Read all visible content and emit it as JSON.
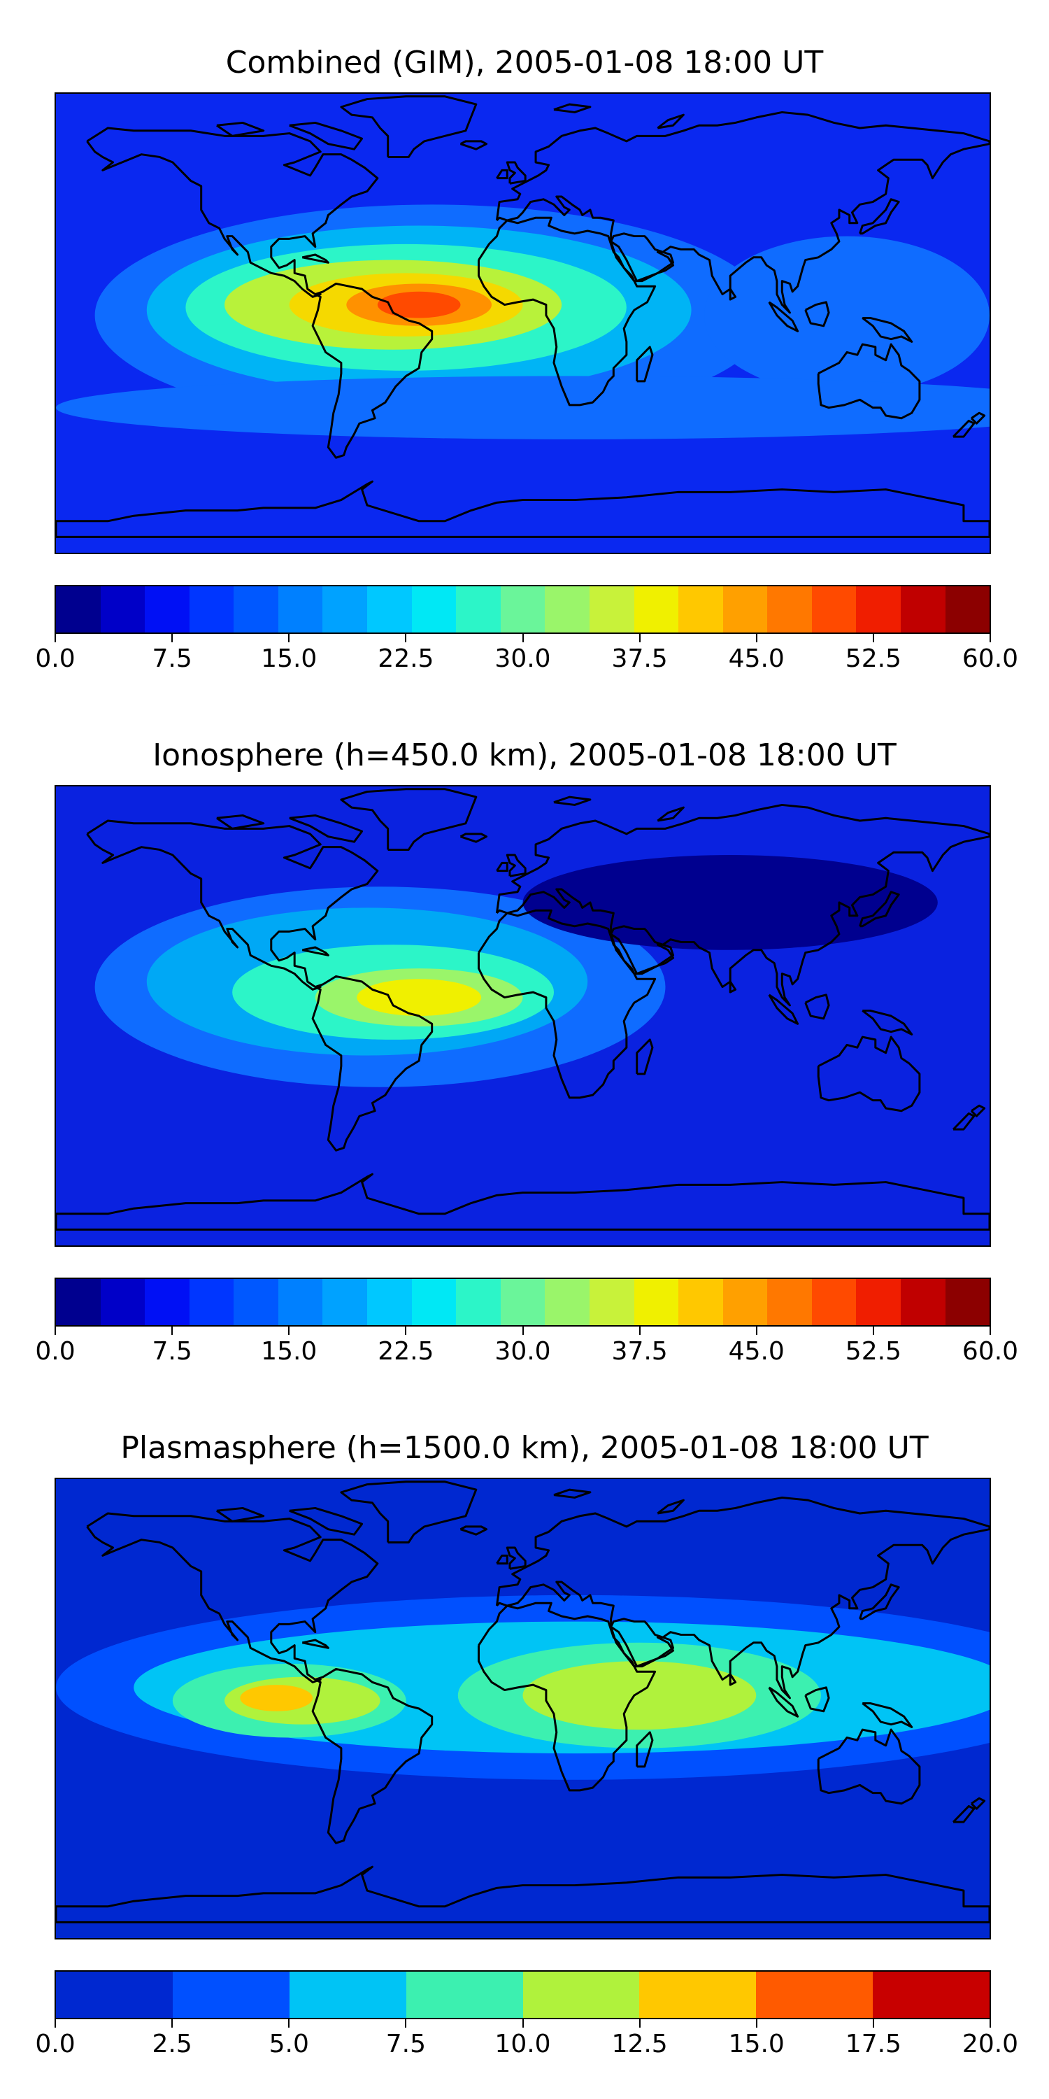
{
  "panels": [
    {
      "title": "Combined (GIM), 2005-01-08 18:00 UT",
      "background": "#0a28f0",
      "blobs": [
        {
          "lon": -35,
          "lat": 0,
          "rx": 130,
          "ry": 42,
          "color": "#0f6cff"
        },
        {
          "lon": -40,
          "lat": 2,
          "rx": 105,
          "ry": 32,
          "color": "#00b4f5"
        },
        {
          "lon": -45,
          "lat": 3,
          "rx": 85,
          "ry": 24,
          "color": "#2cf5c8"
        },
        {
          "lon": -50,
          "lat": 4,
          "rx": 65,
          "ry": 17,
          "color": "#b8f23a"
        },
        {
          "lon": -45,
          "lat": 4,
          "rx": 45,
          "ry": 12,
          "color": "#f5d900"
        },
        {
          "lon": -40,
          "lat": 4,
          "rx": 28,
          "ry": 8,
          "color": "#ff9100"
        },
        {
          "lon": -40,
          "lat": 4,
          "rx": 16,
          "ry": 5,
          "color": "#ff4a00"
        },
        {
          "lon": 125,
          "lat": 0,
          "rx": 55,
          "ry": 30,
          "color": "#0f6cff"
        },
        {
          "lon": 20,
          "lat": -35,
          "rx": 200,
          "ry": 12,
          "color": "#0f6cff"
        }
      ],
      "colorbar": {
        "colors": [
          "#00008f",
          "#0000c8",
          "#0010f5",
          "#0036ff",
          "#0058ff",
          "#0080ff",
          "#00a2ff",
          "#00c8ff",
          "#00e8f5",
          "#2cf5c8",
          "#6af59a",
          "#9af56a",
          "#c8f23a",
          "#f0f000",
          "#ffc800",
          "#ffa000",
          "#ff7800",
          "#ff4a00",
          "#f01e00",
          "#c00000",
          "#8c0000"
        ],
        "ticks": [
          "0.0",
          "7.5",
          "15.0",
          "22.5",
          "30.0",
          "37.5",
          "45.0",
          "52.5",
          "60.0"
        ]
      }
    },
    {
      "title": "Ionosphere  (h=450.0 km), 2005-01-08 18:00 UT",
      "background": "#0a22e0",
      "blobs": [
        {
          "lon": -55,
          "lat": 8,
          "rx": 110,
          "ry": 38,
          "color": "#0f6cff"
        },
        {
          "lon": -60,
          "lat": 10,
          "rx": 85,
          "ry": 28,
          "color": "#00a8f5"
        },
        {
          "lon": -50,
          "lat": 6,
          "rx": 62,
          "ry": 18,
          "color": "#2cf5c8"
        },
        {
          "lon": -40,
          "lat": 4,
          "rx": 40,
          "ry": 11,
          "color": "#9af56a"
        },
        {
          "lon": -40,
          "lat": 4,
          "rx": 24,
          "ry": 7,
          "color": "#f0f000"
        },
        {
          "lon": 80,
          "lat": 40,
          "rx": 80,
          "ry": 18,
          "color": "#00008f"
        }
      ],
      "colorbar": {
        "colors": [
          "#00008f",
          "#0000c8",
          "#0010f5",
          "#0036ff",
          "#0058ff",
          "#0080ff",
          "#00a2ff",
          "#00c8ff",
          "#00e8f5",
          "#2cf5c8",
          "#6af59a",
          "#9af56a",
          "#c8f23a",
          "#f0f000",
          "#ffc800",
          "#ffa000",
          "#ff7800",
          "#ff4a00",
          "#f01e00",
          "#c00000",
          "#8c0000"
        ],
        "ticks": [
          "0.0",
          "7.5",
          "15.0",
          "22.5",
          "30.0",
          "37.5",
          "45.0",
          "52.5",
          "60.0"
        ]
      }
    },
    {
      "title": "Plasmasphere (h=1500.0 km), 2005-01-08 18:00 UT",
      "background": "#0028d0",
      "blobs": [
        {
          "lon": 20,
          "lat": 5,
          "rx": 200,
          "ry": 35,
          "color": "#0050ff"
        },
        {
          "lon": 20,
          "lat": 5,
          "rx": 170,
          "ry": 25,
          "color": "#00c4f5"
        },
        {
          "lon": 45,
          "lat": 2,
          "rx": 70,
          "ry": 20,
          "color": "#3cf0b0"
        },
        {
          "lon": -90,
          "lat": 0,
          "rx": 45,
          "ry": 14,
          "color": "#3cf0b0"
        },
        {
          "lon": 45,
          "lat": 2,
          "rx": 45,
          "ry": 13,
          "color": "#b0f23c"
        },
        {
          "lon": -85,
          "lat": 0,
          "rx": 30,
          "ry": 9,
          "color": "#b0f23c"
        },
        {
          "lon": -95,
          "lat": 1,
          "rx": 14,
          "ry": 5,
          "color": "#ffc800"
        },
        {
          "lon": 60,
          "lat": -45,
          "rx": 40,
          "ry": 8,
          "color": "#0028d0"
        }
      ],
      "colorbar": {
        "colors": [
          "#0028d0",
          "#0050ff",
          "#00c4f5",
          "#3cf0b0",
          "#b0f23c",
          "#ffc800",
          "#ff5a00",
          "#c80000"
        ],
        "ticks": [
          "0.0",
          "2.5",
          "5.0",
          "7.5",
          "10.0",
          "12.5",
          "15.0",
          "17.5",
          "20.0"
        ]
      }
    }
  ],
  "coastline_color": "#000000"
}
